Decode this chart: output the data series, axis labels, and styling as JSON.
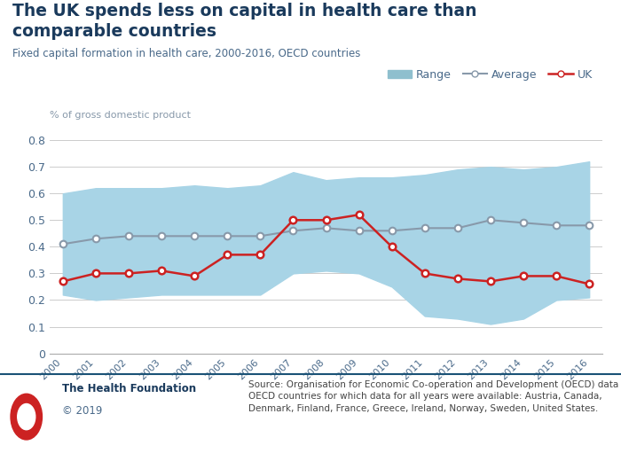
{
  "years": [
    2000,
    2001,
    2002,
    2003,
    2004,
    2005,
    2006,
    2007,
    2008,
    2009,
    2010,
    2011,
    2012,
    2013,
    2014,
    2015,
    2016
  ],
  "uk": [
    0.27,
    0.3,
    0.3,
    0.31,
    0.29,
    0.37,
    0.37,
    0.5,
    0.5,
    0.52,
    0.4,
    0.3,
    0.28,
    0.27,
    0.29,
    0.29,
    0.26
  ],
  "average": [
    0.41,
    0.43,
    0.44,
    0.44,
    0.44,
    0.44,
    0.44,
    0.46,
    0.47,
    0.46,
    0.46,
    0.47,
    0.47,
    0.5,
    0.49,
    0.48,
    0.48
  ],
  "range_low": [
    0.22,
    0.2,
    0.21,
    0.22,
    0.22,
    0.22,
    0.22,
    0.3,
    0.31,
    0.3,
    0.25,
    0.14,
    0.13,
    0.11,
    0.13,
    0.2,
    0.21
  ],
  "range_high": [
    0.6,
    0.62,
    0.62,
    0.62,
    0.63,
    0.62,
    0.63,
    0.68,
    0.65,
    0.66,
    0.66,
    0.67,
    0.69,
    0.7,
    0.69,
    0.7,
    0.72
  ],
  "title_line1": "The UK spends less on capital in health care than",
  "title_line2": "comparable countries",
  "subtitle": "Fixed capital formation in health care, 2000-2016, OECD countries",
  "ylabel": "% of gross domestic product",
  "ylim": [
    0,
    0.85
  ],
  "yticks": [
    0,
    0.1,
    0.2,
    0.3,
    0.4,
    0.5,
    0.6,
    0.7,
    0.8
  ],
  "ytick_labels": [
    "0",
    "0.1",
    "0.2",
    "0.3",
    "0.4",
    "0.5",
    "0.6",
    "0.7",
    "0.8"
  ],
  "range_color": "#a8d4e6",
  "range_legend_color": "#8fbfce",
  "average_color": "#8899aa",
  "uk_color": "#cc2222",
  "title_color": "#1a3a5c",
  "subtitle_color": "#4a6a8a",
  "ylabel_color": "#8899aa",
  "tick_color": "#4a6a8a",
  "footer_org": "The Health Foundation",
  "footer_year": "© 2019",
  "footer_source": "Source: Organisation for Economic Co-operation and Development (OECD) data for\nOECD countries for which data for all years were available: Austria, Canada,\nDenmark, Finland, France, Greece, Ireland, Norway, Sweden, United States.",
  "legend_range": "Range",
  "legend_average": "Average",
  "legend_uk": "UK"
}
